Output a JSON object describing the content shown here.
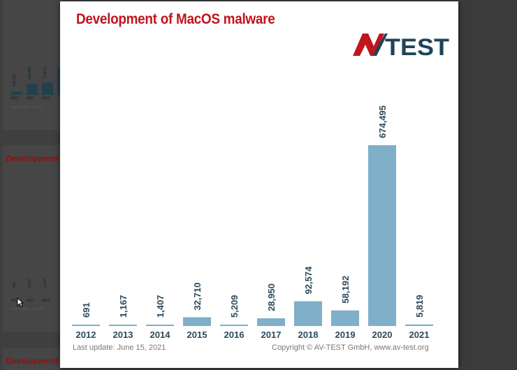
{
  "title": "Development of MacOS malware",
  "logo_text": "AV-TEST",
  "footer": {
    "last_update": "Last update: June 15, 2021",
    "copyright": "Copyright © AV-TEST GmbH, www.av-test.org"
  },
  "background": {
    "titles": [
      "Development o",
      "Development o"
    ],
    "top_chart": {
      "values": [
        "129,762",
        "938,095",
        "1.02 m"
      ],
      "years": [
        "2012",
        "2013",
        "2014"
      ],
      "note": "Last update: June 15"
    },
    "mid_chart": {
      "values": [
        "691",
        "1,167",
        "1,407"
      ],
      "years": [
        "2012",
        "2013",
        "2014"
      ],
      "note": "Last update: June 15"
    }
  },
  "colors": {
    "bar": "#80afc9",
    "accent": "#c0141e",
    "label": "#2b4a5c"
  },
  "chart_data": {
    "type": "bar",
    "categories": [
      "2012",
      "2013",
      "2014",
      "2015",
      "2016",
      "2017",
      "2018",
      "2019",
      "2020",
      "2021"
    ],
    "values": [
      691,
      1167,
      1407,
      32710,
      5209,
      28950,
      92574,
      58192,
      674495,
      5819
    ],
    "value_labels": [
      "691",
      "1,167",
      "1,407",
      "32,710",
      "5,209",
      "28,950",
      "92,574",
      "58,192",
      "674,495",
      "5,819"
    ],
    "ylim": [
      0,
      674495
    ],
    "grid": false,
    "legend": "none"
  }
}
